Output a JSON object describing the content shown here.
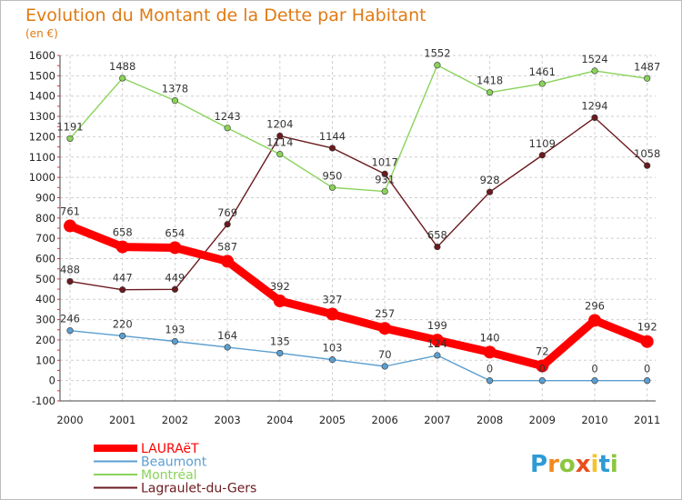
{
  "chart_data": {
    "type": "line",
    "title": "Evolution du Montant de la Dette par Habitant",
    "subtitle": "(en €)",
    "xlabel": "",
    "ylabel": "",
    "ylim": [
      -100,
      1600
    ],
    "ytick_step": 100,
    "grid": true,
    "legend_position": "bottom-left",
    "categories": [
      "2000",
      "2001",
      "2002",
      "2003",
      "2004",
      "2005",
      "2006",
      "2007",
      "2008",
      "2009",
      "2010",
      "2011"
    ],
    "series": [
      {
        "name": "LAURAëT",
        "color": "#ff0000",
        "values": [
          761,
          658,
          654,
          587,
          392,
          327,
          257,
          199,
          140,
          72,
          296,
          192
        ]
      },
      {
        "name": "Beaumont",
        "color": "#5b9fd0",
        "values": [
          246,
          220,
          193,
          164,
          135,
          103,
          70,
          124,
          0,
          0,
          0,
          0
        ]
      },
      {
        "name": "Montréal",
        "color": "#8ad35a",
        "values": [
          1191,
          1488,
          1378,
          1243,
          1114,
          950,
          931,
          1552,
          1418,
          1461,
          1524,
          1487
        ]
      },
      {
        "name": "Lagraulet-du-Gers",
        "color": "#6b1a1f",
        "values": [
          488,
          447,
          449,
          769,
          1204,
          1144,
          1017,
          658,
          928,
          1109,
          1294,
          1058
        ]
      }
    ]
  },
  "watermark": {
    "text": "Proxiti",
    "letters": [
      "P",
      "r",
      "o",
      "x",
      "i",
      "t",
      "i"
    ],
    "colors": [
      "#2e9ad6",
      "#f28a1e",
      "#8cc63f",
      "#e94e1b",
      "#f6c22d",
      "#2e9ad6",
      "#8cc63f"
    ]
  }
}
